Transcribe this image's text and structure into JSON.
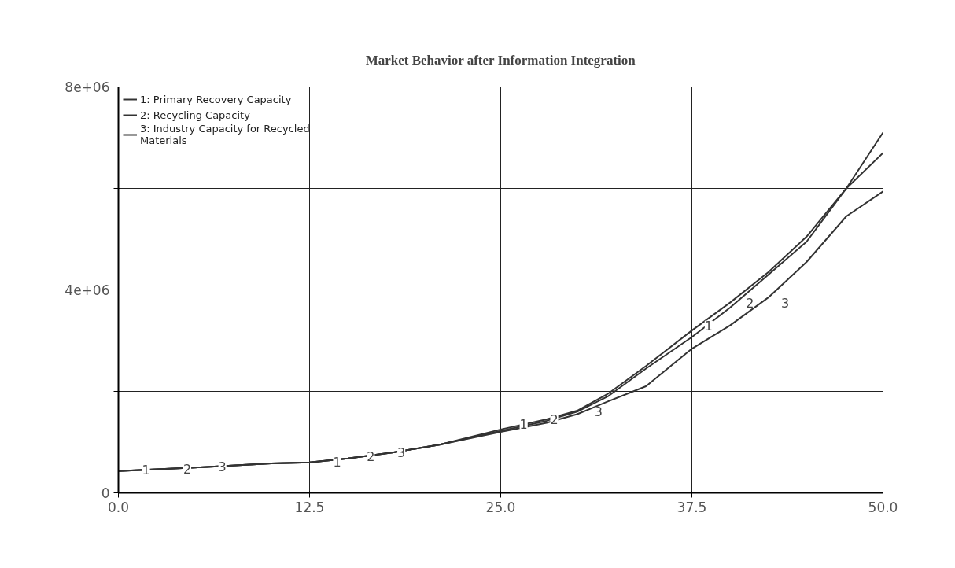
{
  "chart_data": {
    "type": "line",
    "title": "Market Behavior after Information Integration",
    "x": [
      0,
      5,
      10,
      12.5,
      15,
      18,
      21,
      25,
      28,
      30,
      32,
      34.5,
      37.5,
      40,
      42.5,
      45,
      47.6,
      50
    ],
    "series": [
      {
        "name": "1: Primary Recovery Capacity",
        "color": "#333333",
        "values": [
          430000,
          500000,
          580000,
          600000,
          680000,
          800000,
          950000,
          1250000,
          1450000,
          1620000,
          1950000,
          2500000,
          3200000,
          3750000,
          4350000,
          5050000,
          6000000,
          7100000
        ]
      },
      {
        "name": "2: Recycling Capacity",
        "color": "#333333",
        "values": [
          430000,
          500000,
          580000,
          600000,
          680000,
          800000,
          950000,
          1220000,
          1420000,
          1600000,
          1900000,
          2450000,
          3070000,
          3650000,
          4300000,
          4950000,
          6000000,
          6700000
        ]
      },
      {
        "name": "3: Industry Capacity for Recycled Materials",
        "color": "#333333",
        "values": [
          430000,
          500000,
          580000,
          600000,
          680000,
          800000,
          950000,
          1200000,
          1380000,
          1550000,
          1800000,
          2100000,
          2840000,
          3300000,
          3850000,
          4550000,
          5450000,
          5940000
        ]
      }
    ],
    "xlim": [
      0,
      50
    ],
    "xticks": [
      {
        "value": 0,
        "label": "0.0"
      },
      12.5,
      {
        "value": 25,
        "label": "25.0"
      },
      37.5,
      {
        "value": 50,
        "label": "50.0"
      }
    ],
    "ylim": [
      0,
      8000000
    ],
    "yticks": [
      {
        "value": 0,
        "label": "0"
      },
      {
        "value": 2000000,
        "label": null
      },
      {
        "value": 4000000,
        "label": "4e+06"
      },
      {
        "value": 6000000,
        "label": null
      },
      {
        "value": 8000000,
        "label": "8e+06"
      }
    ],
    "grid": true,
    "legend": "top left",
    "marker": "none",
    "line_style": "solid",
    "annotations": [
      {
        "text": "1",
        "x": 1.8,
        "y": 450000
      },
      {
        "text": "2",
        "x": 4.5,
        "y": 480000
      },
      {
        "text": "3",
        "x": 6.8,
        "y": 520000
      },
      {
        "text": "1",
        "x": 14.3,
        "y": 620000
      },
      {
        "text": "2",
        "x": 16.5,
        "y": 720000
      },
      {
        "text": "3",
        "x": 18.5,
        "y": 800000
      },
      {
        "text": "1",
        "x": 26.5,
        "y": 1350000
      },
      {
        "text": "2",
        "x": 28.5,
        "y": 1450000
      },
      {
        "text": "3",
        "x": 31.4,
        "y": 1600000
      },
      {
        "text": "1",
        "x": 38.6,
        "y": 3300000
      },
      {
        "text": "2",
        "x": 41.3,
        "y": 3750000
      },
      {
        "text": "3",
        "x": 43.6,
        "y": 3750000
      }
    ]
  }
}
